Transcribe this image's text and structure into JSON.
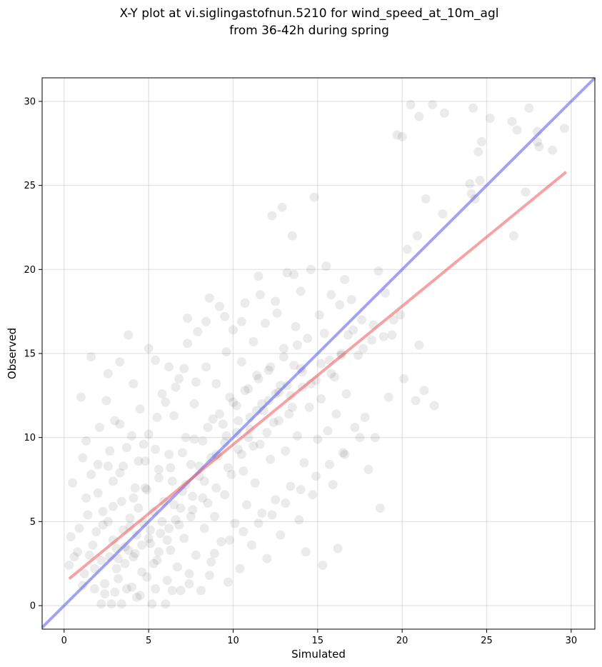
{
  "chart_data": {
    "type": "scatter",
    "title_lines": [
      "X-Y plot at vi.siglingastofnun.5210 for wind_speed_at_10m_agl",
      "from 36-42h during spring"
    ],
    "xlabel": "Simulated",
    "ylabel": "Observed",
    "xlim": [
      -1.3,
      31.4
    ],
    "ylim": [
      -1.4,
      31.4
    ],
    "xticks": [
      0,
      5,
      10,
      15,
      20,
      25,
      30
    ],
    "yticks": [
      0,
      5,
      10,
      15,
      20,
      25,
      30
    ],
    "grid": true,
    "point_color": "#000000",
    "point_alpha": 0.08,
    "reference_lines": [
      {
        "kind": "identity",
        "color": "#6666ee",
        "x": [
          -1.3,
          31.4
        ],
        "y": [
          -1.3,
          31.4
        ]
      },
      {
        "kind": "fit",
        "color": "#ee6666",
        "x": [
          0.3,
          29.7
        ],
        "y": [
          1.6,
          25.8
        ]
      }
    ],
    "points": [
      [
        0.3,
        2.4
      ],
      [
        0.4,
        4.1
      ],
      [
        0.5,
        7.3
      ],
      [
        0.8,
        3.2
      ],
      [
        1.0,
        12.4
      ],
      [
        1.1,
        8.8
      ],
      [
        1.2,
        1.9
      ],
      [
        1.3,
        9.8
      ],
      [
        1.4,
        5.4
      ],
      [
        1.6,
        14.8
      ],
      [
        1.7,
        3.6
      ],
      [
        1.8,
        2.2
      ],
      [
        2.0,
        6.7
      ],
      [
        2.1,
        10.6
      ],
      [
        2.2,
        0.1
      ],
      [
        2.3,
        4.8
      ],
      [
        2.4,
        1.3
      ],
      [
        2.5,
        12.2
      ],
      [
        2.6,
        8.3
      ],
      [
        2.7,
        2.9
      ],
      [
        2.8,
        0.1
      ],
      [
        2.9,
        5.9
      ],
      [
        3.0,
        11.0
      ],
      [
        3.1,
        3.4
      ],
      [
        3.2,
        1.6
      ],
      [
        3.3,
        7.9
      ],
      [
        3.4,
        0.1
      ],
      [
        3.5,
        4.5
      ],
      [
        3.6,
        2.5
      ],
      [
        3.7,
        9.4
      ],
      [
        3.8,
        16.1
      ],
      [
        3.9,
        5.2
      ],
      [
        4.0,
        1.1
      ],
      [
        4.1,
        6.4
      ],
      [
        4.2,
        3.1
      ],
      [
        4.3,
        0.5
      ],
      [
        4.4,
        8.6
      ],
      [
        4.5,
        11.7
      ],
      [
        4.6,
        2.0
      ],
      [
        4.7,
        4.9
      ],
      [
        4.8,
        7.0
      ],
      [
        4.9,
        1.7
      ],
      [
        5.0,
        10.2
      ],
      [
        5.1,
        3.7
      ],
      [
        5.2,
        0.1
      ],
      [
        5.3,
        5.6
      ],
      [
        5.4,
        14.6
      ],
      [
        5.5,
        2.7
      ],
      [
        5.6,
        8.1
      ],
      [
        5.7,
        4.3
      ],
      [
        5.8,
        12.6
      ],
      [
        5.9,
        6.2
      ],
      [
        6.0,
        0.1
      ],
      [
        6.1,
        1.5
      ],
      [
        6.2,
        9.0
      ],
      [
        6.3,
        3.3
      ],
      [
        6.4,
        7.4
      ],
      [
        6.5,
        11.3
      ],
      [
        6.6,
        5.1
      ],
      [
        6.7,
        2.3
      ],
      [
        6.8,
        13.5
      ],
      [
        6.9,
        0.9
      ],
      [
        7.0,
        6.8
      ],
      [
        7.1,
        4.0
      ],
      [
        7.2,
        10.0
      ],
      [
        7.3,
        17.1
      ],
      [
        7.4,
        1.9
      ],
      [
        7.5,
        8.4
      ],
      [
        7.6,
        5.7
      ],
      [
        7.7,
        12.0
      ],
      [
        7.8,
        3.0
      ],
      [
        7.9,
        16.3
      ],
      [
        8.0,
        7.7
      ],
      [
        8.1,
        0.9
      ],
      [
        8.2,
        9.8
      ],
      [
        8.3,
        4.6
      ],
      [
        8.4,
        14.2
      ],
      [
        8.5,
        6.1
      ],
      [
        8.6,
        18.3
      ],
      [
        8.7,
        2.6
      ],
      [
        8.8,
        11.1
      ],
      [
        8.9,
        5.3
      ],
      [
        9.0,
        13.2
      ],
      [
        9.1,
        8.9
      ],
      [
        9.2,
        17.8
      ],
      [
        9.3,
        3.8
      ],
      [
        9.4,
        10.8
      ],
      [
        9.5,
        6.6
      ],
      [
        9.6,
        15.1
      ],
      [
        9.7,
        1.4
      ],
      [
        9.8,
        12.4
      ],
      [
        9.9,
        7.8
      ],
      [
        10.0,
        16.4
      ],
      [
        10.1,
        4.9
      ],
      [
        10.2,
        11.9
      ],
      [
        10.3,
        9.3
      ],
      [
        10.4,
        2.2
      ],
      [
        10.5,
        14.5
      ],
      [
        10.6,
        8.0
      ],
      [
        10.7,
        18.0
      ],
      [
        10.8,
        6.0
      ],
      [
        10.9,
        12.9
      ],
      [
        11.0,
        10.5
      ],
      [
        11.1,
        3.6
      ],
      [
        11.2,
        15.7
      ],
      [
        11.3,
        7.3
      ],
      [
        11.4,
        13.7
      ],
      [
        11.5,
        19.6
      ],
      [
        11.6,
        9.6
      ],
      [
        11.7,
        5.5
      ],
      [
        11.8,
        11.6
      ],
      [
        11.9,
        16.8
      ],
      [
        12.0,
        2.8
      ],
      [
        12.1,
        14.0
      ],
      [
        12.2,
        8.7
      ],
      [
        12.3,
        23.2
      ],
      [
        12.4,
        10.9
      ],
      [
        12.5,
        6.3
      ],
      [
        12.6,
        17.4
      ],
      [
        12.7,
        12.7
      ],
      [
        12.8,
        4.2
      ],
      [
        12.9,
        23.7
      ],
      [
        13.0,
        15.3
      ],
      [
        13.1,
        9.2
      ],
      [
        13.2,
        19.8
      ],
      [
        13.3,
        11.4
      ],
      [
        13.4,
        7.1
      ],
      [
        13.5,
        22.0
      ],
      [
        13.6,
        14.3
      ],
      [
        13.7,
        16.6
      ],
      [
        13.8,
        10.1
      ],
      [
        13.9,
        5.1
      ],
      [
        14.0,
        18.7
      ],
      [
        14.1,
        13.0
      ],
      [
        14.2,
        8.5
      ],
      [
        14.3,
        3.2
      ],
      [
        14.4,
        15.9
      ],
      [
        14.5,
        11.8
      ],
      [
        14.6,
        20.0
      ],
      [
        14.7,
        6.6
      ],
      [
        14.8,
        24.3
      ],
      [
        14.9,
        13.4
      ],
      [
        15.0,
        9.9
      ],
      [
        15.1,
        17.3
      ],
      [
        15.2,
        12.3
      ],
      [
        15.3,
        2.4
      ],
      [
        15.4,
        16.2
      ],
      [
        15.5,
        20.2
      ],
      [
        15.6,
        10.4
      ],
      [
        15.7,
        14.6
      ],
      [
        15.8,
        18.5
      ],
      [
        15.9,
        7.2
      ],
      [
        16.0,
        13.6
      ],
      [
        16.1,
        11.4
      ],
      [
        16.2,
        3.4
      ],
      [
        16.3,
        17.9
      ],
      [
        16.4,
        15.0
      ],
      [
        16.5,
        9.1
      ],
      [
        16.6,
        19.4
      ],
      [
        16.7,
        12.6
      ],
      [
        16.8,
        16.1
      ],
      [
        17.0,
        18.2
      ],
      [
        17.2,
        10.6
      ],
      [
        17.4,
        14.9
      ],
      [
        17.6,
        17.0
      ],
      [
        17.8,
        11.2
      ],
      [
        18.0,
        8.1
      ],
      [
        18.2,
        15.8
      ],
      [
        18.4,
        10.0
      ],
      [
        18.6,
        19.9
      ],
      [
        18.7,
        5.8
      ],
      [
        19.0,
        18.6
      ],
      [
        19.2,
        12.4
      ],
      [
        19.4,
        16.1
      ],
      [
        19.7,
        28.0
      ],
      [
        19.9,
        17.3
      ],
      [
        20.0,
        27.9
      ],
      [
        20.1,
        13.5
      ],
      [
        20.3,
        21.2
      ],
      [
        20.5,
        29.8
      ],
      [
        20.8,
        12.2
      ],
      [
        20.9,
        22.0
      ],
      [
        21.0,
        15.5
      ],
      [
        21.0,
        29.1
      ],
      [
        21.3,
        12.8
      ],
      [
        21.4,
        24.2
      ],
      [
        21.8,
        29.8
      ],
      [
        21.9,
        11.9
      ],
      [
        22.4,
        23.3
      ],
      [
        22.5,
        29.3
      ],
      [
        24.0,
        25.1
      ],
      [
        24.1,
        24.5
      ],
      [
        24.2,
        29.6
      ],
      [
        24.3,
        24.2
      ],
      [
        24.5,
        27.0
      ],
      [
        24.6,
        25.3
      ],
      [
        24.7,
        27.6
      ],
      [
        25.2,
        29.0
      ],
      [
        26.5,
        28.8
      ],
      [
        26.6,
        22.0
      ],
      [
        26.8,
        28.3
      ],
      [
        27.3,
        24.6
      ],
      [
        27.5,
        29.6
      ],
      [
        28.0,
        27.6
      ],
      [
        28.0,
        28.2
      ],
      [
        28.1,
        27.3
      ],
      [
        28.9,
        27.1
      ],
      [
        29.6,
        28.4
      ],
      [
        1.5,
        3.0
      ],
      [
        1.9,
        4.4
      ],
      [
        2.2,
        2.7
      ],
      [
        2.6,
        5.0
      ],
      [
        2.9,
        3.9
      ],
      [
        3.1,
        2.2
      ],
      [
        3.4,
        6.2
      ],
      [
        3.6,
        3.5
      ],
      [
        3.9,
        4.7
      ],
      [
        4.1,
        2.9
      ],
      [
        4.4,
        5.8
      ],
      [
        4.6,
        3.6
      ],
      [
        4.9,
        6.9
      ],
      [
        5.1,
        4.5
      ],
      [
        5.3,
        2.5
      ],
      [
        5.6,
        7.6
      ],
      [
        5.8,
        5.0
      ],
      [
        6.1,
        3.9
      ],
      [
        6.3,
        8.2
      ],
      [
        6.5,
        6.0
      ],
      [
        6.8,
        4.8
      ],
      [
        7.0,
        9.1
      ],
      [
        7.2,
        7.2
      ],
      [
        7.5,
        5.3
      ],
      [
        7.7,
        9.9
      ],
      [
        8.0,
        8.3
      ],
      [
        8.2,
        6.4
      ],
      [
        8.5,
        10.6
      ],
      [
        8.7,
        8.8
      ],
      [
        9.0,
        7.0
      ],
      [
        9.2,
        11.4
      ],
      [
        9.5,
        9.7
      ],
      [
        9.7,
        8.2
      ],
      [
        10.0,
        12.1
      ],
      [
        10.2,
        10.3
      ],
      [
        10.5,
        9.0
      ],
      [
        10.7,
        12.8
      ],
      [
        11.0,
        11.2
      ],
      [
        11.2,
        9.5
      ],
      [
        11.5,
        13.5
      ],
      [
        11.7,
        12.0
      ],
      [
        12.0,
        10.3
      ],
      [
        12.2,
        14.2
      ],
      [
        12.5,
        12.6
      ],
      [
        12.7,
        11.0
      ],
      [
        13.0,
        14.8
      ],
      [
        13.2,
        13.1
      ],
      [
        13.5,
        11.8
      ],
      [
        13.8,
        15.5
      ],
      [
        14.1,
        13.9
      ],
      [
        1.1,
        1.2
      ],
      [
        1.8,
        1.0
      ],
      [
        2.4,
        0.7
      ],
      [
        3.0,
        0.8
      ],
      [
        3.7,
        1.0
      ],
      [
        4.5,
        0.6
      ],
      [
        5.4,
        1.0
      ],
      [
        6.4,
        0.9
      ],
      [
        7.4,
        1.3
      ],
      [
        8.6,
        1.8
      ],
      [
        2.0,
        8.4
      ],
      [
        2.7,
        9.2
      ],
      [
        3.3,
        10.8
      ],
      [
        4.0,
        10.1
      ],
      [
        4.7,
        9.6
      ],
      [
        5.5,
        11.2
      ],
      [
        6.0,
        12.1
      ],
      [
        6.6,
        13.0
      ],
      [
        7.1,
        14.1
      ],
      [
        7.8,
        13.3
      ],
      [
        0.6,
        2.9
      ],
      [
        0.9,
        4.6
      ],
      [
        1.3,
        6.4
      ],
      [
        1.6,
        7.8
      ],
      [
        2.3,
        5.6
      ],
      [
        2.9,
        7.4
      ],
      [
        3.5,
        8.3
      ],
      [
        4.2,
        7.0
      ],
      [
        4.8,
        8.6
      ],
      [
        5.4,
        9.3
      ],
      [
        3.2,
        2.8
      ],
      [
        3.8,
        3.3
      ],
      [
        4.3,
        4.2
      ],
      [
        5.0,
        4.0
      ],
      [
        5.6,
        3.2
      ],
      [
        6.2,
        4.6
      ],
      [
        6.9,
        5.8
      ],
      [
        7.6,
        6.5
      ],
      [
        8.3,
        7.4
      ],
      [
        9.0,
        9.0
      ],
      [
        9.6,
        10.1
      ],
      [
        10.3,
        11.0
      ],
      [
        10.9,
        10.0
      ],
      [
        11.4,
        11.6
      ],
      [
        12.1,
        12.2
      ],
      [
        12.8,
        13.1
      ],
      [
        13.4,
        12.5
      ],
      [
        14.0,
        14.1
      ],
      [
        14.6,
        13.2
      ],
      [
        15.2,
        14.4
      ],
      [
        15.8,
        13.8
      ],
      [
        16.4,
        14.9
      ],
      [
        17.1,
        16.4
      ],
      [
        17.7,
        15.3
      ],
      [
        18.3,
        16.7
      ],
      [
        18.9,
        16.0
      ],
      [
        19.5,
        17.0
      ],
      [
        8.9,
        3.1
      ],
      [
        9.8,
        3.9
      ],
      [
        10.6,
        4.4
      ],
      [
        11.5,
        4.9
      ],
      [
        12.3,
        5.4
      ],
      [
        13.1,
        6.1
      ],
      [
        14.0,
        6.9
      ],
      [
        14.9,
        7.7
      ],
      [
        15.7,
        8.4
      ],
      [
        16.6,
        9.0
      ],
      [
        17.5,
        10.0
      ],
      [
        2.6,
        13.8
      ],
      [
        3.3,
        14.5
      ],
      [
        4.1,
        13.2
      ],
      [
        5.0,
        15.3
      ],
      [
        6.2,
        14.2
      ],
      [
        7.3,
        15.6
      ],
      [
        8.4,
        16.9
      ],
      [
        9.5,
        17.2
      ],
      [
        10.5,
        16.9
      ],
      [
        11.6,
        18.5
      ],
      [
        12.5,
        18.1
      ],
      [
        13.6,
        19.7
      ]
    ]
  }
}
